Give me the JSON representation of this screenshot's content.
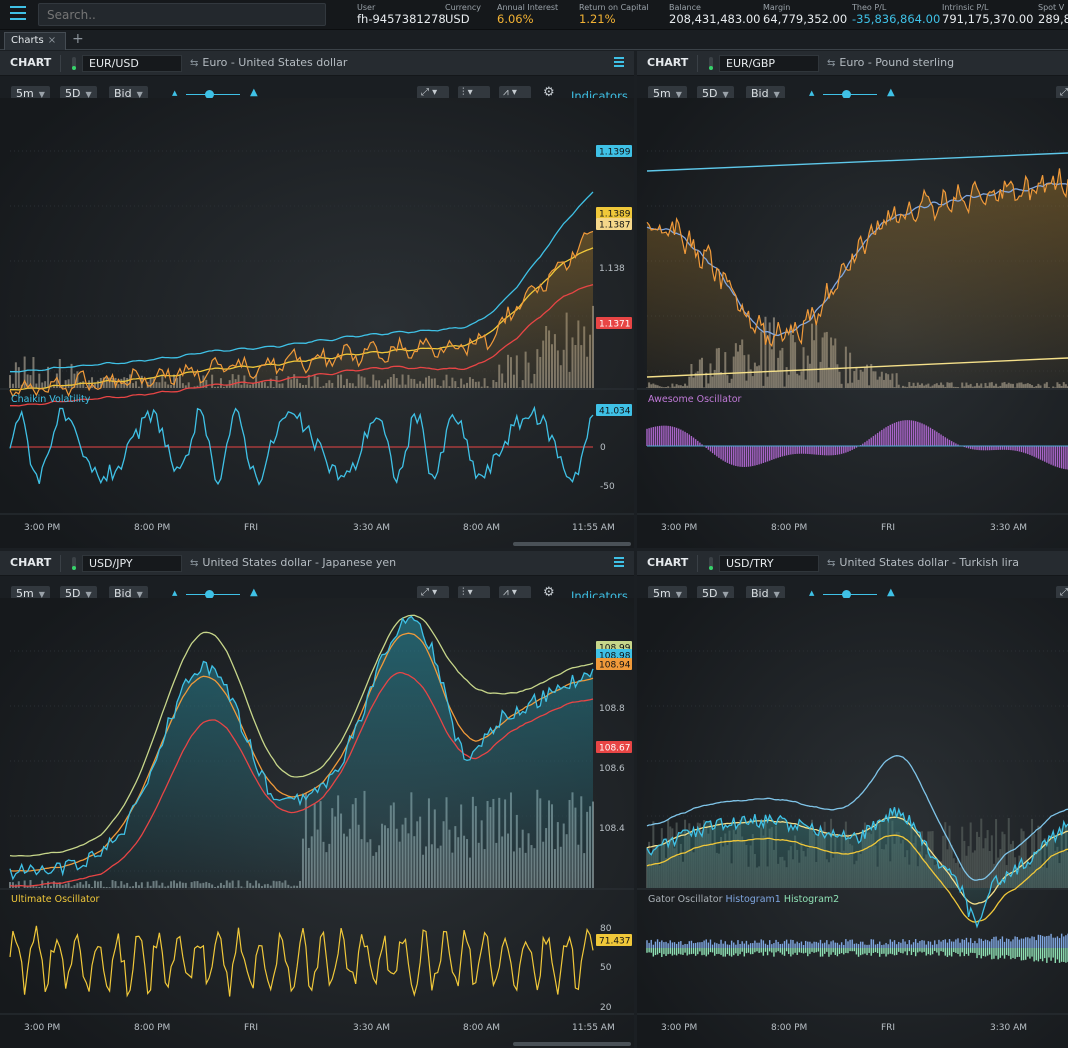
{
  "search": {
    "placeholder": "Search.."
  },
  "stats": [
    {
      "label": "User",
      "value": "fh-9457381278",
      "color": "#e8ecef"
    },
    {
      "label": "Currency",
      "value": "USD",
      "color": "#e8ecef"
    },
    {
      "label": "Annual Interest",
      "value": "6.06%",
      "color": "#f2b234"
    },
    {
      "label": "Return on Capital",
      "value": "1.21%",
      "color": "#f2b234"
    },
    {
      "label": "Balance",
      "value": "208,431,483.00",
      "color": "#e8ecef"
    },
    {
      "label": "Margin",
      "value": "64,779,352.00",
      "color": "#e8ecef"
    },
    {
      "label": "Theo P/L",
      "value": "-35,836,864.00",
      "color": "#3fc1e6"
    },
    {
      "label": "Intrinsic P/L",
      "value": "791,175,370.00",
      "color": "#e8ecef"
    },
    {
      "label": "Spot V",
      "value": "289,8",
      "color": "#e8ecef"
    }
  ],
  "tabs": {
    "active": "Charts",
    "close": "×",
    "add": "+"
  },
  "toolbar": {
    "interval": "5m",
    "range": "5D",
    "side": "Bid",
    "indicators": "Indicators"
  },
  "panels": [
    {
      "id": "eurusd",
      "header": {
        "title": "CHART",
        "symbol": "EUR/USD",
        "description": "Euro - United States dollar"
      },
      "legend": [
        {
          "text": "Bollinger Bands",
          "color": "#aab1b7"
        },
        {
          "text": "LowerBand",
          "color": "#e84545"
        },
        {
          "text": "MiddleLine",
          "color": "#f0c83a"
        },
        {
          "text": "UpperBand",
          "color": "#3fc1e6"
        }
      ],
      "price_ticks": [
        "1.138"
      ],
      "price_labels": [
        {
          "text": "1.1399",
          "color": "#3fc1e6"
        },
        {
          "text": "1.1389",
          "color": "#f0c83a"
        },
        {
          "text": "1.1387",
          "color": "#f5d78a"
        },
        {
          "text": "1.1371",
          "color": "#e84545"
        }
      ],
      "sub": {
        "name": "Chaikin Volatility",
        "color": "#3fc1e6",
        "ticks": [
          "0",
          "-50"
        ],
        "label": {
          "text": "41.034",
          "color": "#3fc1e6"
        }
      },
      "time_axis": [
        "3:00 PM",
        "8:00 PM",
        "FRI",
        "3:30 AM",
        "8:00 AM",
        "11:55 AM"
      ]
    },
    {
      "id": "eurgbp",
      "header": {
        "title": "CHART",
        "symbol": "EUR/GBP",
        "description": "Euro - Pound sterling"
      },
      "legend": [
        {
          "text": "Resistance",
          "color": "#3fc1e6"
        },
        {
          "text": "Support",
          "color": "#f0c83a"
        }
      ],
      "legend2": [
        {
          "text": "EMA",
          "color": "#7fa6e0"
        }
      ],
      "sub": {
        "name": "Awesome Oscillator",
        "color": "#c07ad8"
      },
      "time_axis": [
        "3:00 PM",
        "8:00 PM",
        "FRI",
        "3:30 AM"
      ]
    },
    {
      "id": "usdjpy",
      "header": {
        "title": "CHART",
        "symbol": "USD/JPY",
        "description": "United States dollar - Japanese yen"
      },
      "legend": [
        {
          "text": "Bollinger Bands",
          "color": "#aab1b7"
        },
        {
          "text": "LowerBand",
          "color": "#e84545"
        },
        {
          "text": "MiddleLine",
          "color": "#f09a3a"
        },
        {
          "text": "UpperBand",
          "color": "#c7d68a"
        }
      ],
      "price_ticks": [
        "108.8",
        "108.6",
        "108.4"
      ],
      "price_labels": [
        {
          "text": "108.99",
          "color": "#c7d68a"
        },
        {
          "text": "108.98",
          "color": "#3fc1e6"
        },
        {
          "text": "108.94",
          "color": "#f09a3a"
        },
        {
          "text": "108.67",
          "color": "#e84545"
        }
      ],
      "sub": {
        "name": "Ultimate Oscillator",
        "color": "#f0c83a",
        "ticks": [
          "80",
          "50",
          "20"
        ],
        "label": {
          "text": "71.437",
          "color": "#f0c83a"
        }
      },
      "time_axis": [
        "3:00 PM",
        "8:00 PM",
        "FRI",
        "3:30 AM",
        "8:00 AM",
        "11:55 AM"
      ]
    },
    {
      "id": "usdtry",
      "header": {
        "title": "CHART",
        "symbol": "USD/TRY",
        "description": "United States dollar - Turkish lira"
      },
      "legend": [
        {
          "text": "Bollinger Bands",
          "color": "#aab1b7"
        },
        {
          "text": "LowerBand",
          "color": "#f0c83a"
        },
        {
          "text": "MiddleLine",
          "color": "#f5e08a"
        },
        {
          "text": "UpperBand",
          "color": "#7fc4e8"
        }
      ],
      "sub": {
        "name": "Gator Oscillator",
        "color": "#aab1b7",
        "legend": [
          {
            "text": "Histogram1",
            "color": "#7fa6e0"
          },
          {
            "text": "Histogram2",
            "color": "#8fe0b4"
          }
        ]
      },
      "time_axis": [
        "3:00 PM",
        "8:00 PM",
        "FRI",
        "3:30 AM"
      ]
    }
  ]
}
